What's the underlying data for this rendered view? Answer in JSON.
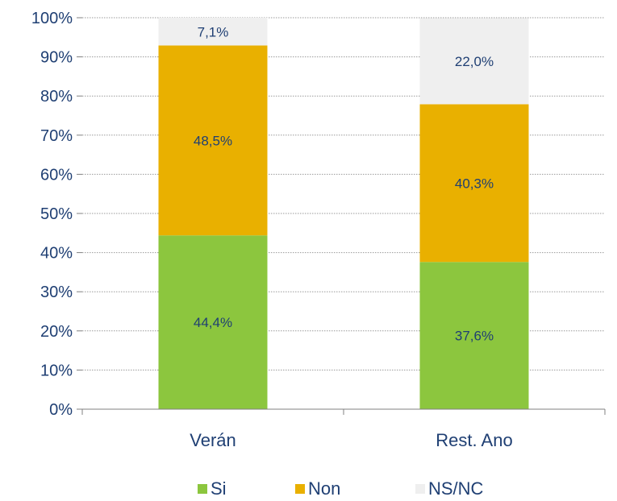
{
  "chart_data": {
    "type": "bar",
    "stacked": true,
    "categories": [
      "Verán",
      "Rest. Ano"
    ],
    "series": [
      {
        "name": "Si",
        "values": [
          44.4,
          37.6
        ],
        "labels": [
          "44,4%",
          "37,6%"
        ],
        "color": "#8cc63e"
      },
      {
        "name": "Non",
        "values": [
          48.5,
          40.3
        ],
        "labels": [
          "48,5%",
          "40,3%"
        ],
        "color": "#e9b000"
      },
      {
        "name": "NS/NC",
        "values": [
          7.1,
          22.0
        ],
        "labels": [
          "7,1%",
          "22,0%"
        ],
        "color": "#efefef"
      }
    ],
    "ylim": [
      0,
      100
    ],
    "yticks": [
      0,
      10,
      20,
      30,
      40,
      50,
      60,
      70,
      80,
      90,
      100
    ],
    "ytick_labels": [
      "0%",
      "10%",
      "20%",
      "30%",
      "40%",
      "50%",
      "60%",
      "70%",
      "80%",
      "90%",
      "100%"
    ],
    "grid": true,
    "legend_position": "bottom"
  }
}
